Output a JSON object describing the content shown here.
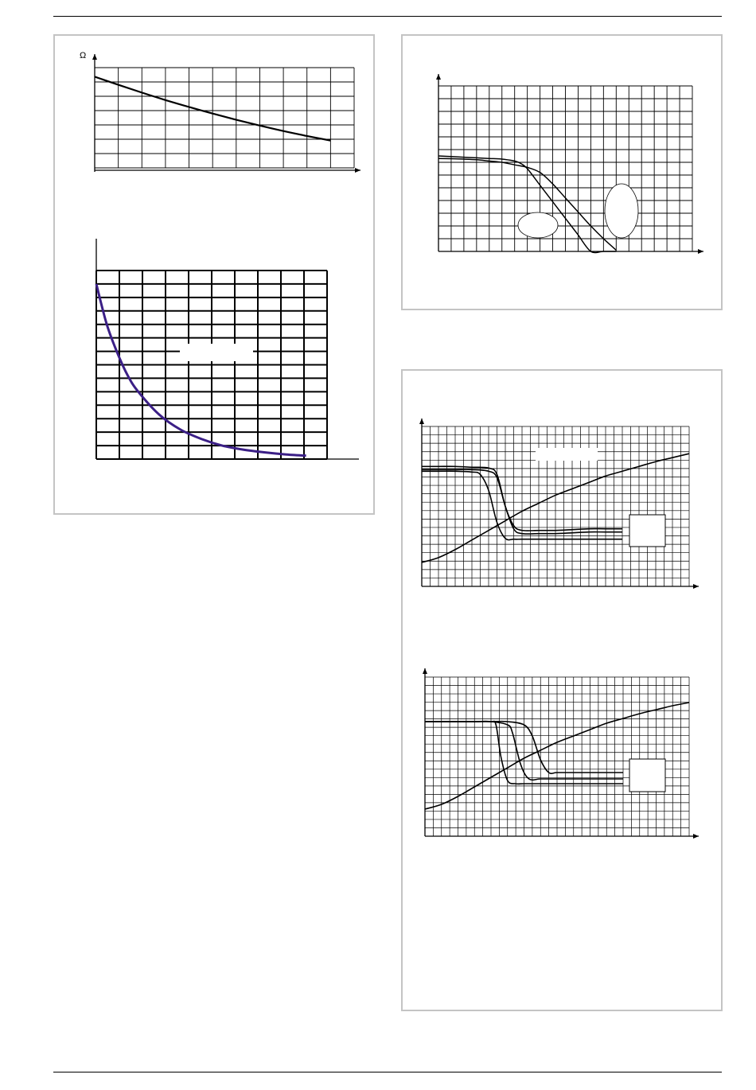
{
  "page": {
    "colors": {
      "frame": "#c4c4c4",
      "ink": "#000000",
      "accent_curve": "#3b1f86"
    }
  },
  "chart_data": [
    {
      "type": "line",
      "title": "",
      "ylabel": "Ω",
      "xlabel": "",
      "grid": true,
      "xlim": [
        0,
        11
      ],
      "ylim": [
        0,
        5.5
      ],
      "series": [
        {
          "x": [
            0,
            1,
            2,
            3,
            4,
            5,
            6,
            7,
            8,
            9,
            10
          ],
          "y": [
            5.0,
            4.56,
            4.13,
            3.72,
            3.34,
            2.98,
            2.64,
            2.32,
            2.02,
            1.75,
            1.5
          ]
        }
      ]
    },
    {
      "type": "line",
      "title": "",
      "xlabel": "",
      "ylabel": "",
      "grid": true,
      "xlim": [
        0,
        11
      ],
      "ylim": [
        0,
        14
      ],
      "series": [
        {
          "x": [
            0,
            0.5,
            1,
            1.5,
            2,
            3,
            4,
            5,
            6,
            7,
            8,
            9,
            10
          ],
          "y": [
            13,
            10,
            7.9,
            6.2,
            5.0,
            3.3,
            2.2,
            1.5,
            1.0,
            0.7,
            0.5,
            0.35,
            0.25
          ]
        }
      ]
    },
    {
      "type": "line",
      "title": "",
      "xlabel": "",
      "ylabel": "",
      "grid": true,
      "xlim": [
        0,
        20
      ],
      "ylim": [
        0,
        13
      ],
      "series": [
        {
          "x": [
            0,
            1,
            2,
            3,
            4,
            5,
            6,
            6.5,
            7,
            8,
            9,
            10,
            10.5,
            11,
            12,
            13,
            14
          ],
          "y": [
            7.5,
            7.45,
            7.4,
            7.35,
            7.3,
            7.25,
            7.1,
            6.9,
            6.5,
            5.2,
            3.9,
            2.6,
            1.95,
            1.3,
            0.0,
            0,
            0
          ]
        },
        {
          "x": [
            0,
            1,
            2,
            3,
            4,
            5,
            6,
            7,
            8,
            9,
            10,
            11,
            12,
            13,
            14
          ],
          "y": [
            7.3,
            7.28,
            7.25,
            7.2,
            7.1,
            7.0,
            6.8,
            6.6,
            6.2,
            5.3,
            4.2,
            3.1,
            2.0,
            1.0,
            0.1
          ]
        }
      ]
    },
    {
      "type": "line",
      "title": "",
      "xlabel": "",
      "ylabel": "",
      "grid": true,
      "xlim": [
        0,
        16
      ],
      "ylim": [
        0,
        10
      ],
      "series": [
        {
          "x": [
            0,
            1,
            2,
            3,
            3.5,
            4,
            4.5,
            5,
            5.5,
            6,
            7,
            8,
            9,
            10,
            11,
            12
          ],
          "y": [
            7.2,
            7.2,
            7.2,
            7.15,
            7.0,
            6.0,
            4.0,
            3.0,
            2.95,
            2.95,
            2.95,
            2.95,
            2.95,
            2.95,
            2.95,
            2.95
          ]
        },
        {
          "x": [
            0,
            1,
            2,
            3,
            4,
            4.5,
            5,
            5.5,
            6,
            7,
            8,
            9,
            10,
            11,
            12
          ],
          "y": [
            7.5,
            7.5,
            7.5,
            7.45,
            7.4,
            7.0,
            5.0,
            3.8,
            3.5,
            3.5,
            3.5,
            3.55,
            3.6,
            3.6,
            3.6
          ]
        },
        {
          "x": [
            0,
            1,
            2,
            3,
            4,
            4.5,
            5,
            5.5,
            6,
            7,
            8,
            9,
            10,
            11,
            12
          ],
          "y": [
            7.3,
            7.3,
            7.3,
            7.3,
            7.2,
            6.8,
            5.0,
            3.6,
            3.3,
            3.3,
            3.3,
            3.35,
            3.4,
            3.4,
            3.4
          ]
        },
        {
          "x": [
            0,
            1,
            2,
            3,
            4,
            5,
            6,
            7,
            8,
            9,
            10,
            11,
            12,
            13,
            14,
            15,
            16
          ],
          "y": [
            1.5,
            1.8,
            2.3,
            2.9,
            3.5,
            4.1,
            4.7,
            5.2,
            5.7,
            6.1,
            6.5,
            6.9,
            7.2,
            7.5,
            7.8,
            8.05,
            8.3
          ]
        }
      ]
    },
    {
      "type": "line",
      "title": "",
      "xlabel": "",
      "ylabel": "",
      "grid": true,
      "xlim": [
        0,
        16
      ],
      "ylim": [
        0,
        10
      ],
      "series": [
        {
          "x": [
            0,
            1,
            2,
            3,
            4,
            4.3,
            4.6,
            5,
            5.5,
            6,
            7,
            8,
            9,
            10,
            11,
            12
          ],
          "y": [
            7.2,
            7.2,
            7.2,
            7.2,
            7.2,
            7.0,
            5.0,
            3.5,
            3.3,
            3.3,
            3.3,
            3.3,
            3.3,
            3.3,
            3.3,
            3.3
          ]
        },
        {
          "x": [
            0,
            1,
            2,
            3,
            4,
            5,
            5.3,
            5.8,
            6.3,
            7,
            8,
            9,
            10,
            11,
            12
          ],
          "y": [
            7.2,
            7.2,
            7.2,
            7.2,
            7.2,
            7.0,
            6.5,
            4.5,
            3.6,
            3.6,
            3.6,
            3.6,
            3.6,
            3.6,
            3.6
          ]
        },
        {
          "x": [
            0,
            1,
            2,
            3,
            4,
            5,
            6,
            6.5,
            7,
            7.5,
            8,
            9,
            10,
            11,
            12
          ],
          "y": [
            7.2,
            7.2,
            7.2,
            7.2,
            7.2,
            7.2,
            7.0,
            6.3,
            4.8,
            4.0,
            4.0,
            4.0,
            4.0,
            4.0,
            4.0
          ]
        },
        {
          "x": [
            0,
            1,
            2,
            3,
            4,
            5,
            6,
            7,
            8,
            9,
            10,
            11,
            12,
            13,
            14,
            15,
            16
          ],
          "y": [
            1.7,
            2.0,
            2.5,
            3.1,
            3.7,
            4.3,
            4.9,
            5.4,
            5.9,
            6.3,
            6.7,
            7.1,
            7.4,
            7.7,
            7.95,
            8.2,
            8.4
          ]
        }
      ]
    }
  ]
}
